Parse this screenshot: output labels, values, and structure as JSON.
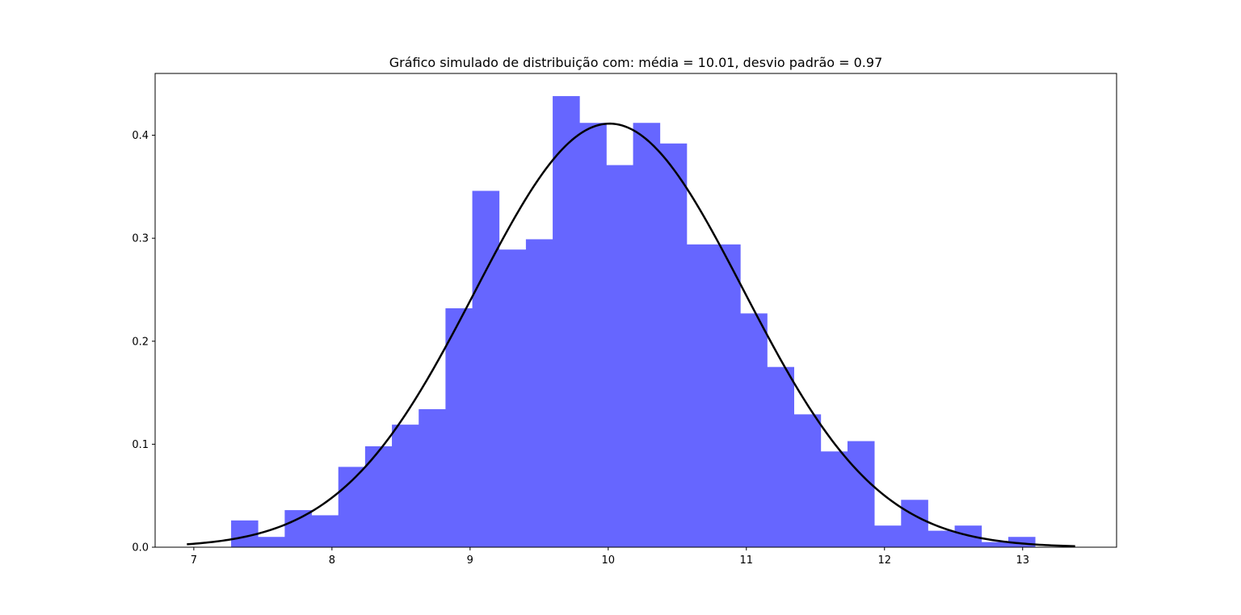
{
  "chart_data": {
    "type": "bar",
    "title": "Gráfico simulado de distribuição com: média = 10.01,  desvio padrão = 0.97",
    "xlabel": "",
    "ylabel": "",
    "xlim": [
      6.72,
      13.68
    ],
    "ylim": [
      0.0,
      0.46
    ],
    "xticks": [
      7,
      8,
      9,
      10,
      11,
      12,
      13
    ],
    "yticks": [
      0.0,
      0.1,
      0.2,
      0.3,
      0.4
    ],
    "xtick_labels": [
      "7",
      "8",
      "9",
      "10",
      "11",
      "12",
      "13"
    ],
    "ytick_labels": [
      "0.0",
      "0.1",
      "0.2",
      "0.3",
      "0.4"
    ],
    "grid": false,
    "legend": "none",
    "histogram": {
      "bin_width": 0.194,
      "bins": [
        {
          "x0": 7.27,
          "value": 0.026
        },
        {
          "x0": 7.464,
          "value": 0.01
        },
        {
          "x0": 7.658,
          "value": 0.036
        },
        {
          "x0": 7.852,
          "value": 0.031
        },
        {
          "x0": 8.046,
          "value": 0.078
        },
        {
          "x0": 8.24,
          "value": 0.098
        },
        {
          "x0": 8.434,
          "value": 0.119
        },
        {
          "x0": 8.628,
          "value": 0.134
        },
        {
          "x0": 8.822,
          "value": 0.232
        },
        {
          "x0": 9.016,
          "value": 0.346
        },
        {
          "x0": 9.21,
          "value": 0.289
        },
        {
          "x0": 9.404,
          "value": 0.299
        },
        {
          "x0": 9.598,
          "value": 0.438
        },
        {
          "x0": 9.792,
          "value": 0.412
        },
        {
          "x0": 9.986,
          "value": 0.371
        },
        {
          "x0": 10.18,
          "value": 0.412
        },
        {
          "x0": 10.374,
          "value": 0.392
        },
        {
          "x0": 10.568,
          "value": 0.294
        },
        {
          "x0": 10.762,
          "value": 0.294
        },
        {
          "x0": 10.956,
          "value": 0.227
        },
        {
          "x0": 11.15,
          "value": 0.175
        },
        {
          "x0": 11.344,
          "value": 0.129
        },
        {
          "x0": 11.538,
          "value": 0.093
        },
        {
          "x0": 11.732,
          "value": 0.103
        },
        {
          "x0": 11.926,
          "value": 0.021
        },
        {
          "x0": 12.12,
          "value": 0.046
        },
        {
          "x0": 12.314,
          "value": 0.016
        },
        {
          "x0": 12.508,
          "value": 0.021
        },
        {
          "x0": 12.702,
          "value": 0.005
        },
        {
          "x0": 12.896,
          "value": 0.01
        }
      ]
    },
    "curve": {
      "type": "normal-pdf",
      "mean": 10.01,
      "std": 0.97,
      "x_start": 6.95,
      "x_end": 13.38
    },
    "colors": {
      "bars": "#6666ff",
      "curve": "#000000",
      "axes": "#000000",
      "background": "#ffffff"
    }
  }
}
